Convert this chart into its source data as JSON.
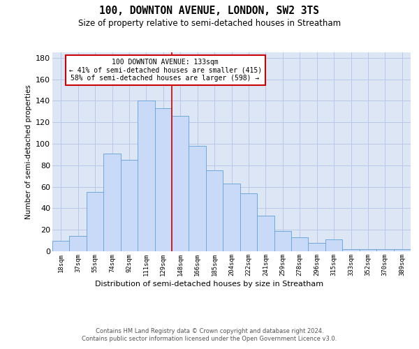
{
  "title": "100, DOWNTON AVENUE, LONDON, SW2 3TS",
  "subtitle": "Size of property relative to semi-detached houses in Streatham",
  "xlabel": "Distribution of semi-detached houses by size in Streatham",
  "ylabel": "Number of semi-detached properties",
  "categories": [
    "18sqm",
    "37sqm",
    "55sqm",
    "74sqm",
    "92sqm",
    "111sqm",
    "129sqm",
    "148sqm",
    "166sqm",
    "185sqm",
    "204sqm",
    "222sqm",
    "241sqm",
    "259sqm",
    "278sqm",
    "296sqm",
    "315sqm",
    "333sqm",
    "352sqm",
    "370sqm",
    "389sqm"
  ],
  "values": [
    10,
    14,
    55,
    91,
    85,
    140,
    133,
    126,
    98,
    75,
    63,
    54,
    33,
    19,
    13,
    8,
    11,
    2,
    2,
    2,
    2
  ],
  "bar_color": "#c9daf8",
  "bar_edge_color": "#6fa8dc",
  "background_color": "#ffffff",
  "axes_bg_color": "#dce6f5",
  "grid_color": "#b8c8e8",
  "annotation_title": "100 DOWNTON AVENUE: 133sqm",
  "annotation_line1": "← 41% of semi-detached houses are smaller (415)",
  "annotation_line2": "58% of semi-detached houses are larger (598) →",
  "annotation_box_color": "#ffffff",
  "annotation_box_edge": "#cc0000",
  "vline_color": "#cc0000",
  "vline_x": 6.5,
  "ylim": [
    0,
    185
  ],
  "yticks": [
    0,
    20,
    40,
    60,
    80,
    100,
    120,
    140,
    160,
    180
  ],
  "footer_line1": "Contains HM Land Registry data © Crown copyright and database right 2024.",
  "footer_line2": "Contains public sector information licensed under the Open Government Licence v3.0."
}
